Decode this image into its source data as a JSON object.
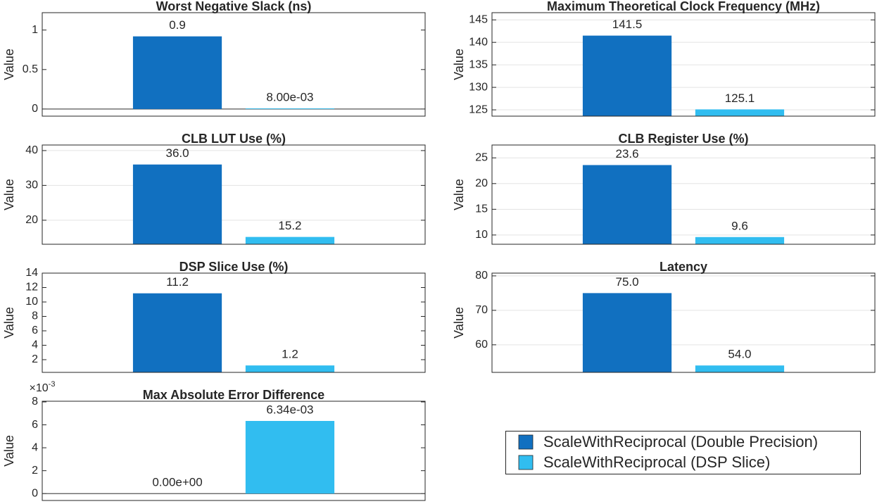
{
  "legend": {
    "entries": [
      {
        "name": "ScaleWithReciprocal (Double Precision)",
        "color": "#1170c0"
      },
      {
        "name": "ScaleWithReciprocal (DSP Slice)",
        "color": "#31bdf0"
      }
    ]
  },
  "chart_data": [
    {
      "type": "bar",
      "title": "Worst Negative Slack (ns)",
      "ylabel": "Value",
      "categories": [
        null
      ],
      "series": [
        {
          "values": [
            0.92
          ],
          "value_labels": [
            "0.9"
          ]
        },
        {
          "values": [
            0.008
          ],
          "value_labels": [
            "8.00e-03"
          ]
        }
      ],
      "ylim": [
        -0.09,
        1.22
      ],
      "yticks": [
        0,
        0.5,
        1
      ],
      "grid": false
    },
    {
      "type": "bar",
      "title": "Maximum Theoretical Clock Frequency (MHz)",
      "ylabel": "Value",
      "categories": [
        null
      ],
      "series": [
        {
          "values": [
            141.5
          ],
          "value_labels": [
            "141.5"
          ]
        },
        {
          "values": [
            125.1
          ],
          "value_labels": [
            "125.1"
          ]
        }
      ],
      "ylim": [
        123.6,
        146.6
      ],
      "yticks": [
        125,
        130,
        135,
        140,
        145
      ],
      "grid": true
    },
    {
      "type": "bar",
      "title": "CLB LUT Use (%)",
      "ylabel": "Value",
      "categories": [
        null
      ],
      "series": [
        {
          "values": [
            36.0
          ],
          "value_labels": [
            "36.0"
          ]
        },
        {
          "values": [
            15.2
          ],
          "value_labels": [
            "15.2"
          ]
        }
      ],
      "ylim": [
        13.1,
        41.6
      ],
      "yticks": [
        20,
        30,
        40
      ],
      "grid": true
    },
    {
      "type": "bar",
      "title": "CLB Register Use (%)",
      "ylabel": "Value",
      "categories": [
        null
      ],
      "series": [
        {
          "values": [
            23.6
          ],
          "value_labels": [
            "23.6"
          ]
        },
        {
          "values": [
            9.6
          ],
          "value_labels": [
            "9.6"
          ]
        }
      ],
      "ylim": [
        8.2,
        27.5
      ],
      "yticks": [
        10,
        15,
        20,
        25
      ],
      "grid": true
    },
    {
      "type": "bar",
      "title": "DSP Slice Use (%)",
      "ylabel": "Value",
      "categories": [
        null
      ],
      "series": [
        {
          "values": [
            11.2
          ],
          "value_labels": [
            "11.2"
          ]
        },
        {
          "values": [
            1.2
          ],
          "value_labels": [
            "1.2"
          ]
        }
      ],
      "ylim": [
        0.24,
        14
      ],
      "yticks": [
        2,
        4,
        6,
        8,
        10,
        12,
        14
      ],
      "grid": false
    },
    {
      "type": "bar",
      "title": "Latency",
      "ylabel": "Value",
      "categories": [
        null
      ],
      "series": [
        {
          "values": [
            75.0
          ],
          "value_labels": [
            "75.0"
          ]
        },
        {
          "values": [
            54.0
          ],
          "value_labels": [
            "54.0"
          ]
        }
      ],
      "ylim": [
        52.0,
        80.8
      ],
      "yticks": [
        60,
        70,
        80
      ],
      "grid": true
    },
    {
      "type": "bar",
      "title": "Max Absolute Error Difference",
      "ylabel": "Value",
      "categories": [
        null
      ],
      "axis_exponent": {
        "base": "×10",
        "power": "-3"
      },
      "series": [
        {
          "values": [
            0
          ],
          "value_labels": [
            "0.00e+00"
          ]
        },
        {
          "values": [
            0.00634
          ],
          "value_labels": [
            "6.34e-03"
          ]
        }
      ],
      "ylim": [
        -0.0006,
        0.00806
      ],
      "yticks": [
        {
          "value": 0,
          "label": "0"
        },
        {
          "value": 0.002,
          "label": "2"
        },
        {
          "value": 0.004,
          "label": "4"
        },
        {
          "value": 0.006,
          "label": "6"
        },
        {
          "value": 0.008,
          "label": "8"
        }
      ],
      "grid": false
    }
  ]
}
